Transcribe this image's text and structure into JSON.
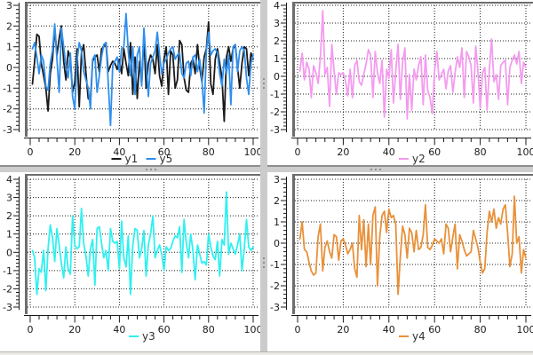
{
  "window": {
    "background": "#ffffff",
    "splitter_color": "#cbcbcb",
    "splitter_edge_color": "#8e8e8e",
    "grid_color": "#1c1c1c",
    "frame_color": "#6d6d6d",
    "tick_label_color": "#1a1a1a"
  },
  "chart_data": [
    {
      "type": "line",
      "title": "",
      "xlabel": "",
      "ylabel": "",
      "xlim": [
        0,
        100
      ],
      "ylim": [
        -3,
        3
      ],
      "x_ticks": [
        0,
        20,
        40,
        60,
        80,
        100
      ],
      "x_minor_step": 4,
      "y_ticks": [
        -3,
        -2,
        -1,
        0,
        1,
        2,
        3
      ],
      "y_minor_step": 0.2,
      "grid": true,
      "legend_position": "bottom-center",
      "series": [
        {
          "name": "y1",
          "color": "#1a1a1a",
          "x_start": 1,
          "values": [
            -0.8,
            0.3,
            1.6,
            1.5,
            0.2,
            -0.4,
            -1.0,
            -2.1,
            -0.3,
            0.4,
            1.9,
            0.6,
            1.4,
            2.0,
            0.3,
            -0.6,
            0.8,
            0.4,
            -1.2,
            -0.7,
            0.9,
            -1.9,
            0.7,
            1.1,
            -0.3,
            -1.5,
            -1.6,
            0.3,
            0.5,
            0.6,
            -0.2,
            0.9,
            1.0,
            1.2,
            -0.2,
            0.1,
            0.3,
            0.2,
            -0.1,
            0.4,
            -0.3,
            0.9,
            0.2,
            -0.4,
            1.2,
            -1.3,
            0.5,
            -1.5,
            0.3,
            -0.8,
            1.5,
            -1.0,
            0.2,
            0.6,
            0.4,
            -0.3,
            1.1,
            -0.4,
            -0.9,
            0.4,
            1.0,
            -1.3,
            0.8,
            0.6,
            -1.0,
            -0.6,
            1.3,
            1.1,
            -0.5,
            -1.1,
            -1.2,
            0.2,
            0.4,
            -0.3,
            1.1,
            0.0,
            -0.7,
            0.5,
            0.9,
            2.2,
            -0.8,
            -1.3,
            0.4,
            0.9,
            0.2,
            -0.5,
            -2.6,
            0.5,
            1.0,
            0.3,
            0.9,
            1.1,
            0.0,
            -1.0,
            0.2,
            1.0,
            0.9,
            -0.4,
            0.7,
            0.4
          ]
        },
        {
          "name": "y5",
          "color": "#2f8fee",
          "x_start": 1,
          "values": [
            0.9,
            1.2,
            0.5,
            -0.3,
            0.6,
            0.3,
            -0.9,
            -1.1,
            0.2,
            0.8,
            2.1,
            0.4,
            -1.2,
            1.9,
            1.0,
            0.1,
            -0.5,
            0.7,
            -1.4,
            -2.0,
            0.3,
            1.2,
            0.8,
            -0.2,
            -0.6,
            -1.0,
            -2.0,
            0.4,
            0.6,
            -1.2,
            -0.4,
            0.5,
            1.1,
            1.2,
            -0.7,
            -2.8,
            0.1,
            0.3,
            0.5,
            -0.2,
            0.9,
            1.0,
            2.6,
            0.8,
            -0.4,
            1.0,
            -1.3,
            0.6,
            1.0,
            -0.9,
            1.9,
            0.3,
            -1.4,
            0.2,
            0.5,
            0.8,
            1.7,
            0.6,
            -0.3,
            0.2,
            0.4,
            0.7,
            0.9,
            1.0,
            0.4,
            0.6,
            0.7,
            -0.3,
            -0.5,
            0.2,
            0.3,
            -0.4,
            0.5,
            0.6,
            -0.2,
            0.4,
            -0.6,
            -2.2,
            0.8,
            1.7,
            0.6,
            0.8,
            0.9,
            0.7,
            -0.3,
            -0.9,
            0.4,
            -0.3,
            0.6,
            -1.8,
            1.0,
            1.1,
            -0.2,
            0.8,
            1.0,
            0.8,
            -0.5,
            -1.3,
            0.2,
            0.6
          ]
        }
      ]
    },
    {
      "type": "line",
      "title": "",
      "xlabel": "",
      "ylabel": "",
      "xlim": [
        0,
        100
      ],
      "ylim": [
        -3,
        4
      ],
      "x_ticks": [
        0,
        20,
        40,
        60,
        80,
        100
      ],
      "x_minor_step": 4,
      "y_ticks": [
        -3,
        -2,
        -1,
        0,
        1,
        2,
        3,
        4
      ],
      "y_minor_step": 0.2,
      "grid": true,
      "legend_position": "bottom-center",
      "series": [
        {
          "name": "y2",
          "color": "#f49bef",
          "x_start": 1,
          "values": [
            0.3,
            1.3,
            -0.2,
            0.8,
            0.4,
            -1.2,
            0.6,
            0.2,
            -0.4,
            1.1,
            3.7,
            0.1,
            0.5,
            -1.7,
            1.8,
            0.3,
            -1.0,
            0.2,
            0.1,
            0.2,
            -0.3,
            -1.1,
            0.4,
            -1.2,
            0.6,
            0.9,
            -0.3,
            -0.5,
            0.1,
            0.7,
            1.5,
            1.2,
            -1.2,
            1.4,
            0.2,
            -0.4,
            0.9,
            -2.3,
            0.4,
            -0.1,
            1.5,
            -1.5,
            0.3,
            1.8,
            -1.3,
            0.8,
            1.6,
            -2.4,
            0.1,
            -1.9,
            0.4,
            -0.2,
            0.6,
            1.1,
            -1.6,
            1.2,
            -0.8,
            -1.2,
            -2.1,
            0.3,
            1.4,
            -0.2,
            0.1,
            0.4,
            -0.7,
            0.3,
            0.6,
            -0.9,
            0.2,
            1.1,
            0.5,
            1.6,
            -1.2,
            1.4,
            1.1,
            0.6,
            -1.5,
            1.7,
            0.3,
            -1.8,
            0.2,
            0.5,
            -1.9,
            0.4,
            2.1,
            -0.3,
            0.1,
            -1.3,
            0.6,
            0.8,
            0.9,
            -1.6,
            0.5,
            0.9,
            1.2,
            0.7,
            1.4,
            -0.4,
            0.8,
            0.5
          ]
        }
      ]
    },
    {
      "type": "line",
      "title": "",
      "xlabel": "",
      "ylabel": "",
      "xlim": [
        0,
        100
      ],
      "ylim": [
        -3,
        4
      ],
      "x_ticks": [
        0,
        20,
        40,
        60,
        80,
        100
      ],
      "x_minor_step": 4,
      "y_ticks": [
        -3,
        -2,
        -1,
        0,
        1,
        2,
        3,
        4
      ],
      "y_minor_step": 0.2,
      "grid": true,
      "legend_position": "bottom-center",
      "series": [
        {
          "name": "y3",
          "color": "#30f0f0",
          "x_start": 1,
          "values": [
            0.1,
            -0.3,
            -2.3,
            -0.9,
            -1.1,
            0.1,
            -2.1,
            0.2,
            1.5,
            0.8,
            -0.5,
            1.3,
            0.4,
            -0.6,
            -1.4,
            0.3,
            -0.9,
            -1.2,
            2.0,
            0.4,
            0.2,
            0.3,
            2.4,
            0.5,
            -0.2,
            -1.3,
            0.2,
            0.7,
            -1.8,
            1.3,
            1.4,
            0.5,
            -0.3,
            0.1,
            -1.0,
            1.3,
            0.6,
            0.5,
            0.6,
            -0.9,
            1.7,
            -0.3,
            -0.8,
            0.9,
            -2.3,
            0.4,
            1.3,
            1.2,
            -0.3,
            0.2,
            1.2,
            -1.3,
            0.4,
            1.0,
            2.0,
            -0.3,
            0.1,
            0.4,
            -0.1,
            -1.0,
            0.3,
            0.1,
            0.2,
            0.6,
            0.9,
            0.8,
            1.4,
            -1.1,
            1.8,
            0.5,
            -0.3,
            1.0,
            0.1,
            -1.5,
            0.4,
            -0.1,
            -0.6,
            -0.5,
            -0.7,
            1.0,
            0.3,
            -0.2,
            -0.4,
            0.6,
            -1.3,
            0.7,
            0.4,
            3.3,
            -0.1,
            0.5,
            0.2,
            -0.1,
            0.4,
            1.0,
            -1.0,
            0.2,
            1.8,
            0.3,
            0.1,
            0.3
          ]
        }
      ]
    },
    {
      "type": "line",
      "title": "",
      "xlabel": "",
      "ylabel": "",
      "xlim": [
        0,
        100
      ],
      "ylim": [
        -3,
        3
      ],
      "x_ticks": [
        0,
        20,
        40,
        60,
        80,
        100
      ],
      "x_minor_step": 4,
      "y_ticks": [
        -3,
        -2,
        -1,
        0,
        1,
        2,
        3
      ],
      "y_minor_step": 0.2,
      "grid": true,
      "legend_position": "bottom-center",
      "series": [
        {
          "name": "y4",
          "color": "#e8913a",
          "x_start": 1,
          "values": [
            0.2,
            1.0,
            -0.3,
            -0.4,
            -0.9,
            -1.3,
            -1.5,
            -1.4,
            0.3,
            0.9,
            -1.3,
            -0.2,
            0.1,
            -0.4,
            -0.7,
            0.4,
            0.3,
            -0.8,
            0.1,
            0.2,
            -0.1,
            -0.5,
            -0.3,
            0.0,
            -1.2,
            -1.6,
            1.3,
            -0.3,
            1.1,
            -1.1,
            0.9,
            -1.0,
            1.3,
            1.7,
            -2.0,
            0.3,
            1.3,
            1.5,
            0.5,
            1.6,
            1.2,
            1.3,
            0.9,
            -2.4,
            -0.6,
            0.8,
            0.4,
            -0.7,
            0.7,
            0.5,
            -0.4,
            0.6,
            -0.3,
            -0.2,
            0.4,
            1.8,
            -0.2,
            -0.3,
            -0.1,
            0.2,
            0.1,
            0.0,
            0.2,
            -0.5,
            0.9,
            0.7,
            -0.4,
            0.3,
            0.9,
            -1.2,
            0.4,
            0.1,
            -0.3,
            -0.6,
            -0.5,
            -0.4,
            0.6,
            0.2,
            -0.2,
            -0.9,
            -1.4,
            -1.2,
            0.5,
            1.5,
            1.0,
            1.6,
            0.7,
            1.2,
            0.9,
            1.6,
            1.8,
            0.5,
            -1.1,
            -0.5,
            2.2,
            0.0,
            0.3,
            -1.4,
            -0.3,
            -0.7
          ]
        }
      ]
    }
  ]
}
